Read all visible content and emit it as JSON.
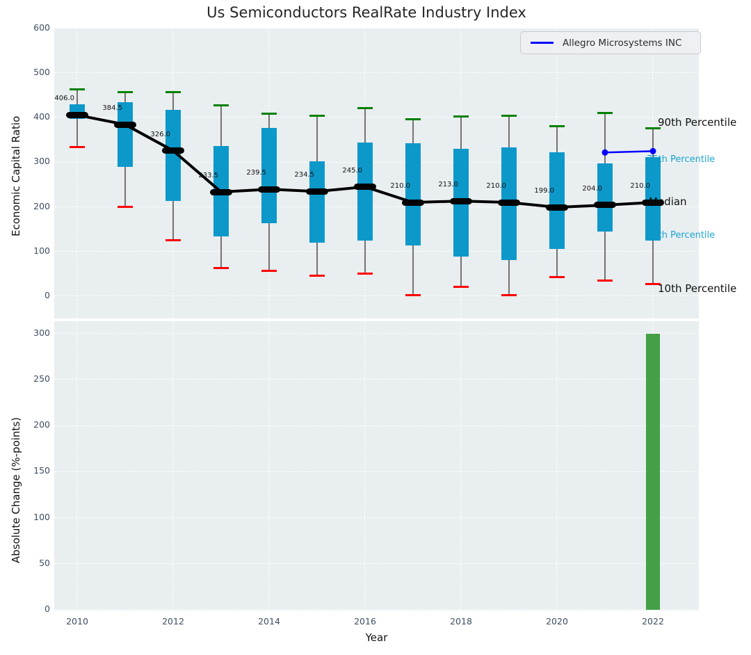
{
  "title": "Us Semiconductors RealRate Industry Index",
  "legend": {
    "label": "Allegro Microsystems INC",
    "line_color": "#0000ff"
  },
  "annotations": {
    "p90": "90th Percentile",
    "p75": "75th Percentile",
    "median": "Median",
    "p25": "25th Percentile",
    "p10": "10th Percentile"
  },
  "axes": {
    "top_ylabel": "Economic Capital Ratio",
    "bottom_ylabel": "Absolute Change (%-points)",
    "xlabel": "Year",
    "top_yticks": [
      0,
      100,
      200,
      300,
      400,
      500,
      600
    ],
    "bottom_yticks": [
      0,
      50,
      100,
      150,
      200,
      250,
      300
    ],
    "xticks": [
      2010,
      2012,
      2014,
      2016,
      2018,
      2020,
      2022
    ]
  },
  "chart_data": [
    {
      "type": "boxplot",
      "panel": "top",
      "ylabel": "Economic Capital Ratio",
      "ylim": [
        -50,
        600
      ],
      "grid": true,
      "years": [
        2010,
        2011,
        2012,
        2013,
        2014,
        2015,
        2016,
        2017,
        2018,
        2019,
        2020,
        2021,
        2022
      ],
      "series": {
        "p10": [
          334,
          200,
          125,
          63,
          57,
          45,
          50,
          2,
          20,
          2,
          43,
          35,
          27
        ],
        "p25": [
          398,
          290,
          214,
          133,
          163,
          120,
          124,
          113,
          89,
          81,
          106,
          144,
          124
        ],
        "median": [
          406,
          384.5,
          326,
          233.5,
          239.5,
          234.5,
          245,
          210,
          213,
          210,
          199,
          204,
          210
        ],
        "p75": [
          430,
          435,
          417,
          337,
          377,
          302,
          345,
          342,
          330,
          333,
          322,
          297,
          312
        ],
        "p90": [
          464,
          457,
          457,
          428,
          409,
          404,
          421,
          397,
          402,
          405,
          381,
          411,
          377
        ]
      },
      "median_labels": [
        "406.0",
        "384.5",
        "326.0",
        "233.5",
        "239.5",
        "234.5",
        "245.0",
        "210.0",
        "213.0",
        "210.0",
        "199.0",
        "204.0",
        "210.0"
      ],
      "overlay_line": {
        "name": "Allegro Microsystems INC",
        "x": [
          2021,
          2022
        ],
        "y": [
          322,
          325
        ]
      }
    },
    {
      "type": "bar",
      "panel": "bottom",
      "ylabel": "Absolute Change (%-points)",
      "xlabel": "Year",
      "ylim": [
        0,
        313
      ],
      "grid": true,
      "x": [
        2022
      ],
      "values": [
        300
      ],
      "bar_color": "#43a047"
    }
  ],
  "colors": {
    "box_fill": "#0d98ca",
    "whisker": "#737373",
    "p90_cap": "#008000",
    "p10_cap": "#ff0000",
    "median_line": "#000000",
    "overlay_line": "#0000ff",
    "bar": "#43a047",
    "panel_bg": "#e9eef0",
    "grid": "#ffffff",
    "tick_label": "#3d4d63",
    "percentile_label_cyan": "#1ba6d0"
  }
}
